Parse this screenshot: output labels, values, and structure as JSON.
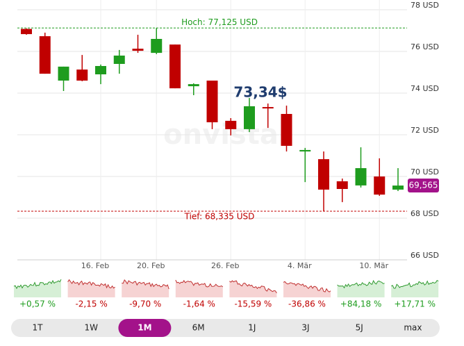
{
  "chart_data": {
    "type": "candlestick",
    "categories": [
      null,
      null,
      null,
      null,
      "16. Feb",
      null,
      null,
      "20. Feb",
      null,
      null,
      null,
      "26. Feb",
      null,
      null,
      null,
      "4. Mär",
      null,
      null,
      null,
      "10. Mär",
      null
    ],
    "open": [
      77.08,
      76.73,
      74.6,
      75.13,
      74.9,
      75.4,
      76.13,
      75.93,
      76.33,
      74.33,
      74.6,
      72.67,
      72.27,
      73.33,
      73.0,
      71.2,
      70.83,
      69.77,
      69.57,
      70.0,
      69.37
    ],
    "high": [
      77.1,
      76.9,
      75.27,
      75.83,
      75.37,
      76.07,
      76.8,
      77.125,
      76.33,
      74.47,
      74.6,
      72.8,
      73.77,
      73.5,
      73.4,
      71.37,
      71.2,
      69.9,
      71.4,
      70.87,
      70.4
    ],
    "low": [
      76.8,
      74.93,
      74.1,
      74.57,
      74.43,
      74.93,
      75.93,
      75.87,
      74.23,
      73.9,
      72.27,
      71.97,
      72.13,
      72.33,
      71.2,
      69.73,
      68.335,
      68.77,
      69.47,
      69.07,
      69.3
    ],
    "close": [
      76.83,
      74.93,
      75.27,
      74.6,
      75.3,
      75.8,
      76.03,
      76.6,
      74.23,
      74.43,
      72.6,
      72.27,
      73.37,
      73.27,
      71.47,
      71.27,
      69.37,
      69.4,
      70.4,
      69.13,
      69.565
    ],
    "up_color": "#1e9c1e",
    "down_color": "#c00000",
    "ylim": [
      66,
      78.5
    ],
    "yticks": [
      {
        "value": 66,
        "label": "66 USD"
      },
      {
        "value": 68,
        "label": "68 USD"
      },
      {
        "value": 70,
        "label": "70 USD"
      },
      {
        "value": 72,
        "label": "72 USD"
      },
      {
        "value": 74,
        "label": "74 USD"
      },
      {
        "value": 76,
        "label": "76 USD"
      },
      {
        "value": 78,
        "label": "78 USD"
      }
    ],
    "grid": true,
    "high_line": {
      "value": 77.125,
      "label": "Hoch: 77,125 USD"
    },
    "low_line": {
      "value": 68.335,
      "label": "Tief: 68,335 USD"
    },
    "price_label": "73,34$",
    "last_price": {
      "value": 69.565,
      "label": "69,565"
    },
    "watermark": "onvista"
  },
  "performance": [
    "+0,57 %",
    "-2,15 %",
    "-9,70 %",
    "-1,64 %",
    "-15,59 %",
    "-36,86 %",
    "+84,18 %",
    "+17,71 %"
  ],
  "periods": [
    "1T",
    "1W",
    "1M",
    "6M",
    "1J",
    "3J",
    "5J",
    "max"
  ],
  "active_period": 2
}
